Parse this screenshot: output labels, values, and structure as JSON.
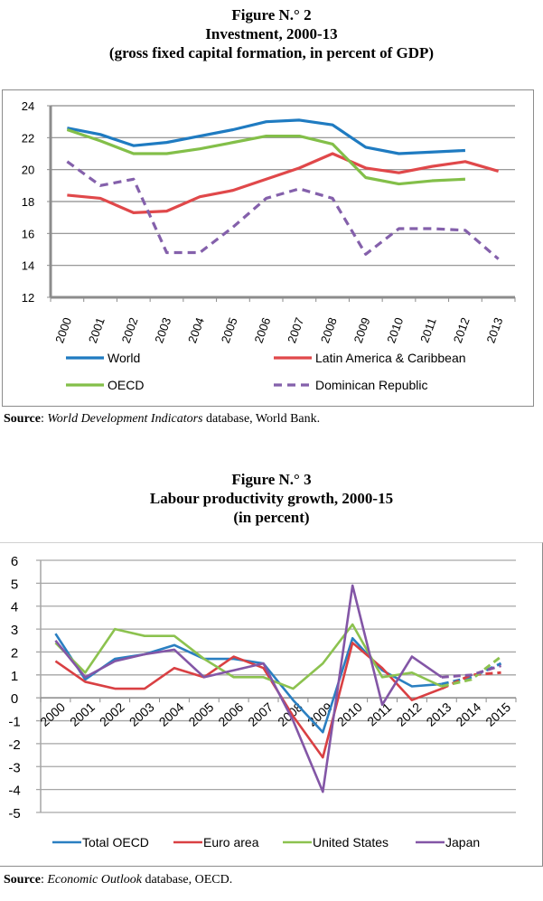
{
  "figures": [
    {
      "title_lines": [
        "Figure N.° 2",
        "Investment, 2000-13",
        "(gross fixed capital formation, in percent of GDP)"
      ],
      "source_label": "Source",
      "source_italic": "World Development Indicators",
      "source_rest": " database, World Bank."
    },
    {
      "title_lines": [
        "Figure N.° 3",
        "Labour productivity growth, 2000-15",
        "(in percent)"
      ],
      "source_label": "Source",
      "source_italic": "Economic Outlook",
      "source_rest": " database, OECD."
    }
  ],
  "chart_data": [
    {
      "type": "line",
      "title": "Investment, 2000-13 (gross fixed capital formation, in percent of GDP)",
      "xlabel": "",
      "ylabel": "",
      "x": [
        "2000",
        "2001",
        "2002",
        "2003",
        "2004",
        "2005",
        "2006",
        "2007",
        "2008",
        "2009",
        "2010",
        "2011",
        "2012",
        "2013"
      ],
      "ylim": [
        12,
        24
      ],
      "yticks": [
        12,
        14,
        16,
        18,
        20,
        22,
        24
      ],
      "grid": true,
      "legend": "bottom",
      "series": [
        {
          "name": "World",
          "color": "#1f7bc1",
          "dashed": false,
          "values": [
            22.6,
            22.2,
            21.5,
            21.7,
            22.1,
            22.5,
            23.0,
            23.1,
            22.8,
            21.4,
            21.0,
            21.1,
            21.2,
            null
          ]
        },
        {
          "name": "Latin America & Caribbean",
          "color": "#e0484a",
          "dashed": false,
          "values": [
            18.4,
            18.2,
            17.3,
            17.4,
            18.3,
            18.7,
            19.4,
            20.1,
            21.0,
            20.1,
            19.8,
            20.2,
            20.5,
            19.9
          ]
        },
        {
          "name": "OECD",
          "color": "#83bf49",
          "dashed": false,
          "values": [
            22.5,
            21.8,
            21.0,
            21.0,
            21.3,
            21.7,
            22.1,
            22.1,
            21.6,
            19.5,
            19.1,
            19.3,
            19.4,
            null
          ]
        },
        {
          "name": "Dominican Republic",
          "color": "#8460ab",
          "dashed": true,
          "values": [
            20.5,
            19.0,
            19.4,
            14.8,
            14.8,
            16.4,
            18.2,
            18.8,
            18.2,
            14.7,
            16.3,
            16.3,
            16.2,
            14.4
          ]
        }
      ]
    },
    {
      "type": "line",
      "title": "Labour productivity growth, 2000-15 (in percent)",
      "xlabel": "",
      "ylabel": "",
      "x": [
        "2000",
        "2001",
        "2002",
        "2003",
        "2004",
        "2005",
        "2006",
        "2007",
        "2008",
        "2009",
        "2010",
        "2011",
        "2012",
        "2013",
        "2014",
        "2015"
      ],
      "ylim": [
        -5,
        6
      ],
      "yticks": [
        -5,
        -4,
        -3,
        -2,
        -1,
        0,
        1,
        2,
        3,
        4,
        5,
        6
      ],
      "grid": true,
      "legend": "bottom",
      "projection_from_index": 13,
      "series": [
        {
          "name": "Total OECD",
          "color": "#2a7fc1",
          "values": [
            2.8,
            0.8,
            1.7,
            1.9,
            2.3,
            1.7,
            1.7,
            1.5,
            -0.1,
            -1.5,
            2.6,
            1.2,
            0.5,
            0.6,
            0.9,
            1.5
          ]
        },
        {
          "name": "Euro area",
          "color": "#d94043",
          "values": [
            1.6,
            0.7,
            0.4,
            0.4,
            1.3,
            0.9,
            1.8,
            1.3,
            -0.8,
            -2.6,
            2.4,
            1.3,
            -0.1,
            0.4,
            1.0,
            1.1
          ]
        },
        {
          "name": "United States",
          "color": "#8cc24f",
          "values": [
            2.4,
            1.1,
            3.0,
            2.7,
            2.7,
            1.7,
            0.9,
            0.9,
            0.4,
            1.5,
            3.2,
            0.9,
            1.1,
            0.5,
            0.8,
            1.8
          ]
        },
        {
          "name": "Japan",
          "color": "#8356a6",
          "values": [
            2.5,
            0.9,
            1.6,
            1.9,
            2.1,
            0.9,
            1.2,
            1.5,
            -1.0,
            -4.1,
            4.9,
            -0.3,
            1.8,
            0.9,
            1.0,
            1.4
          ]
        }
      ]
    }
  ]
}
